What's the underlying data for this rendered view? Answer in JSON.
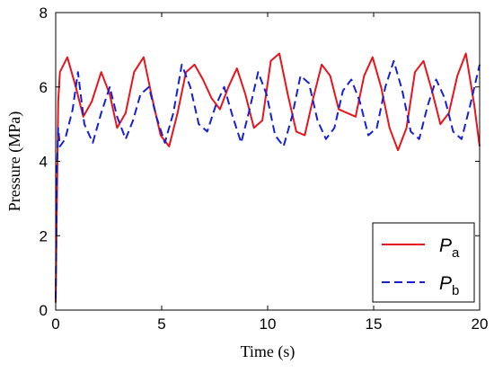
{
  "chart_data": {
    "type": "line",
    "xlabel": "Time (s)",
    "ylabel": "Pressure (MPa)",
    "xlim": [
      0,
      20
    ],
    "ylim": [
      0,
      8
    ],
    "xticks": [
      "0",
      "5",
      "10",
      "15",
      "20"
    ],
    "yticks": [
      "0",
      "2",
      "4",
      "6",
      "8"
    ],
    "grid": false,
    "legend_position": "bottom-right",
    "colors": {
      "Pa": "#e8141c",
      "Pb": "#1420d8"
    },
    "series": [
      {
        "key": "Pa",
        "name": "P",
        "subscript": "a",
        "color": "#e8141c",
        "style": "solid",
        "x": [
          0,
          0.06,
          0.12,
          0.2,
          0.55,
          0.95,
          1.3,
          1.7,
          2.15,
          2.55,
          2.9,
          3.3,
          3.7,
          4.15,
          4.55,
          4.95,
          5.35,
          5.75,
          6.15,
          6.55,
          6.95,
          7.35,
          7.75,
          8.15,
          8.55,
          8.95,
          9.35,
          9.75,
          10.15,
          10.55,
          10.95,
          11.35,
          11.75,
          12.15,
          12.55,
          12.95,
          13.35,
          13.75,
          14.15,
          14.55,
          14.95,
          15.35,
          15.75,
          16.15,
          16.55,
          16.95,
          17.35,
          17.75,
          18.15,
          18.55,
          18.95,
          19.35,
          19.75,
          20.0
        ],
        "y": [
          0.2,
          3.0,
          5.6,
          6.4,
          6.8,
          6.0,
          5.2,
          5.6,
          6.4,
          5.8,
          4.9,
          5.3,
          6.4,
          6.8,
          5.7,
          4.7,
          4.4,
          5.3,
          6.4,
          6.6,
          6.2,
          5.7,
          5.4,
          6.0,
          6.5,
          5.8,
          4.9,
          5.1,
          6.7,
          6.9,
          5.8,
          4.8,
          4.7,
          5.7,
          6.6,
          6.3,
          5.4,
          5.3,
          5.2,
          6.3,
          6.8,
          6.0,
          4.9,
          4.3,
          4.9,
          6.4,
          6.7,
          5.9,
          5.0,
          5.3,
          6.3,
          6.9,
          5.5,
          4.4
        ]
      },
      {
        "key": "Pb",
        "name": "P",
        "subscript": "b",
        "color": "#1420d8",
        "style": "dashed",
        "x": [
          0,
          0.06,
          0.12,
          0.2,
          0.45,
          0.8,
          1.05,
          1.35,
          1.75,
          2.15,
          2.55,
          2.9,
          3.3,
          3.65,
          4.0,
          4.4,
          4.75,
          5.15,
          5.55,
          5.95,
          6.35,
          6.75,
          7.15,
          7.55,
          7.95,
          8.35,
          8.75,
          9.15,
          9.55,
          9.95,
          10.35,
          10.75,
          11.15,
          11.55,
          11.95,
          12.35,
          12.75,
          13.15,
          13.55,
          13.95,
          14.35,
          14.75,
          15.15,
          15.55,
          15.95,
          16.35,
          16.75,
          17.15,
          17.55,
          17.95,
          18.35,
          18.75,
          19.15,
          19.55,
          20.0
        ],
        "y": [
          0.3,
          3.8,
          4.9,
          4.4,
          4.6,
          5.4,
          6.4,
          5.0,
          4.5,
          5.3,
          6.0,
          5.2,
          4.6,
          5.1,
          5.8,
          6.0,
          5.2,
          4.5,
          5.3,
          6.6,
          6.0,
          5.0,
          4.8,
          5.5,
          6.0,
          5.2,
          4.5,
          5.4,
          6.4,
          5.8,
          4.7,
          4.4,
          5.2,
          6.3,
          6.1,
          5.1,
          4.6,
          4.9,
          5.9,
          6.2,
          5.6,
          4.7,
          4.9,
          6.0,
          6.7,
          5.9,
          4.8,
          4.6,
          5.5,
          6.2,
          5.7,
          4.8,
          4.6,
          5.5,
          6.6
        ]
      }
    ]
  }
}
